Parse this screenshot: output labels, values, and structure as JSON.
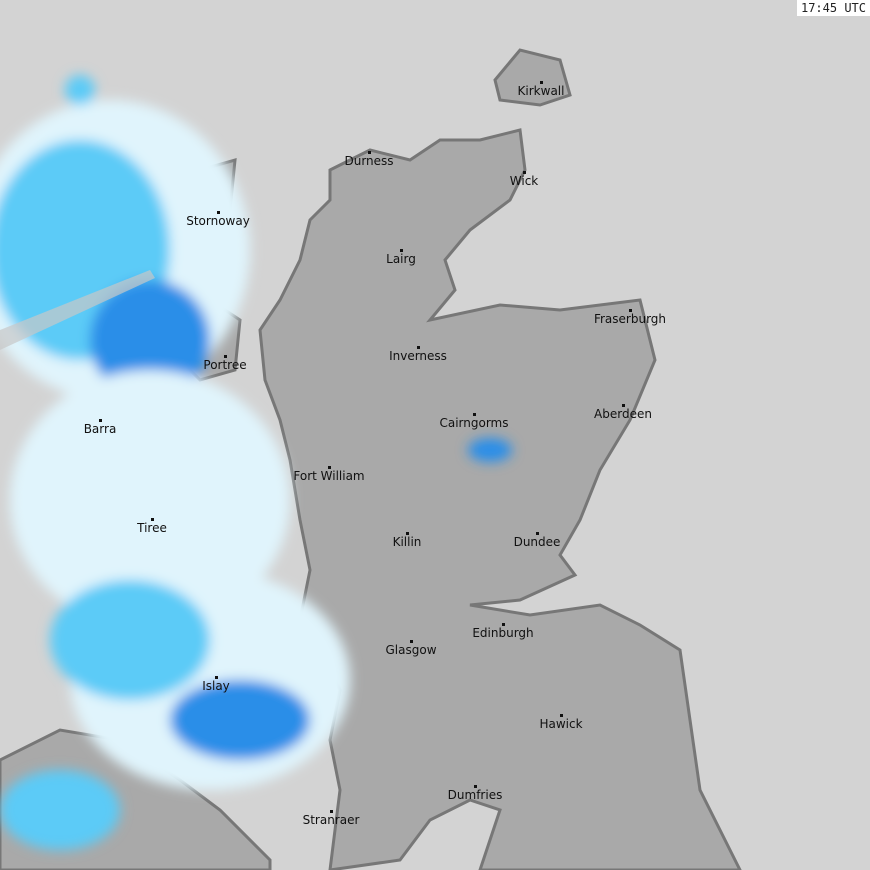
{
  "timestamp": "17:45 UTC",
  "colors": {
    "sea": "#d3d3d3",
    "land": "#a9a9a9",
    "coast": "#777777",
    "rain_light": "#e0f4fc",
    "rain_mid": "#5ccbf7",
    "rain_heavy": "#2a8ee8"
  },
  "cities": [
    {
      "name": "Kirkwall"
    },
    {
      "name": "Durness"
    },
    {
      "name": "Wick"
    },
    {
      "name": "Stornoway"
    },
    {
      "name": "Lairg"
    },
    {
      "name": "Fraserburgh"
    },
    {
      "name": "Inverness"
    },
    {
      "name": "Portree"
    },
    {
      "name": "Cairngorms"
    },
    {
      "name": "Aberdeen"
    },
    {
      "name": "Barra"
    },
    {
      "name": "Fort William"
    },
    {
      "name": "Tiree"
    },
    {
      "name": "Killin"
    },
    {
      "name": "Dundee"
    },
    {
      "name": "Edinburgh"
    },
    {
      "name": "Glasgow"
    },
    {
      "name": "Islay"
    },
    {
      "name": "Hawick"
    },
    {
      "name": "Dumfries"
    },
    {
      "name": "Stranraer"
    }
  ]
}
